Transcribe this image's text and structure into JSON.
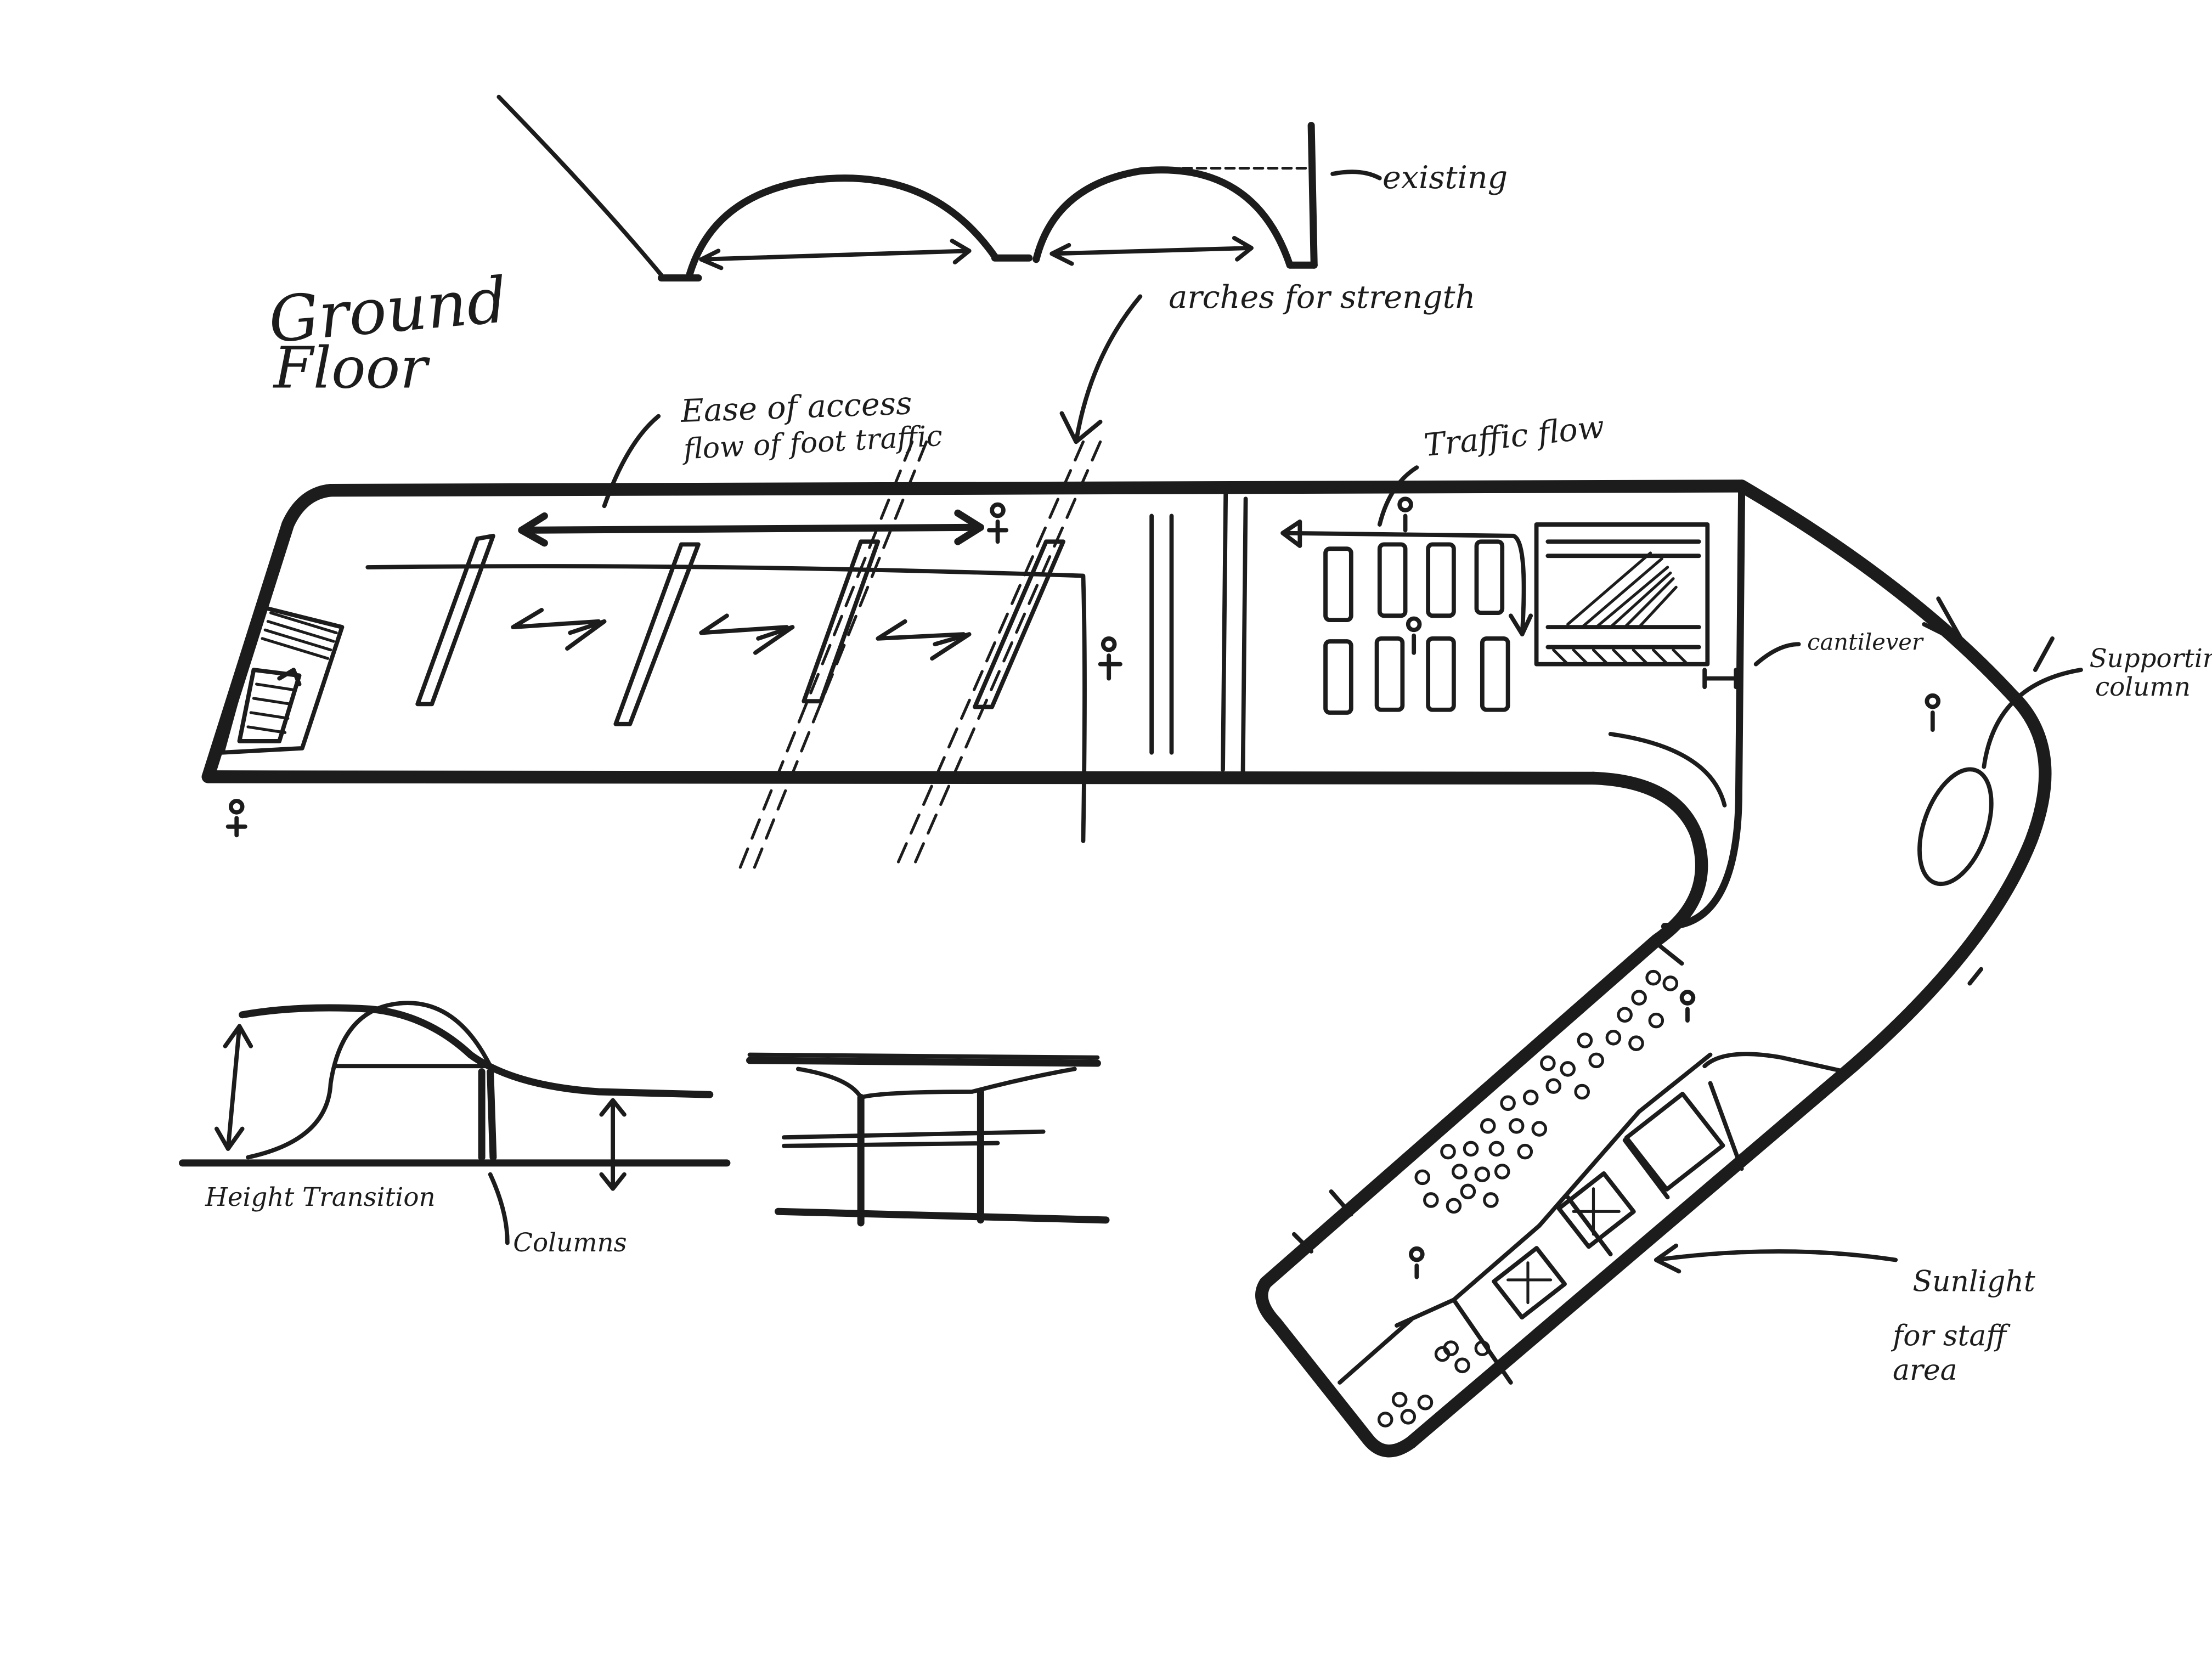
{
  "title": {
    "line1": "Ground",
    "line2": "Floor"
  },
  "annotations": {
    "existing": "existing",
    "arches": "arches for strength",
    "ease_access_1": "Ease of access",
    "ease_access_2": "flow of foot traffic",
    "traffic_flow": "Traffic flow",
    "cantilever": "cantilever",
    "supporting_column_1": "Supporting",
    "supporting_column_2": "column",
    "sunlight_1": "Sunlight",
    "sunlight_2": "for staff",
    "sunlight_3": "area",
    "height_transition": "Height Transition",
    "columns": "Columns"
  }
}
